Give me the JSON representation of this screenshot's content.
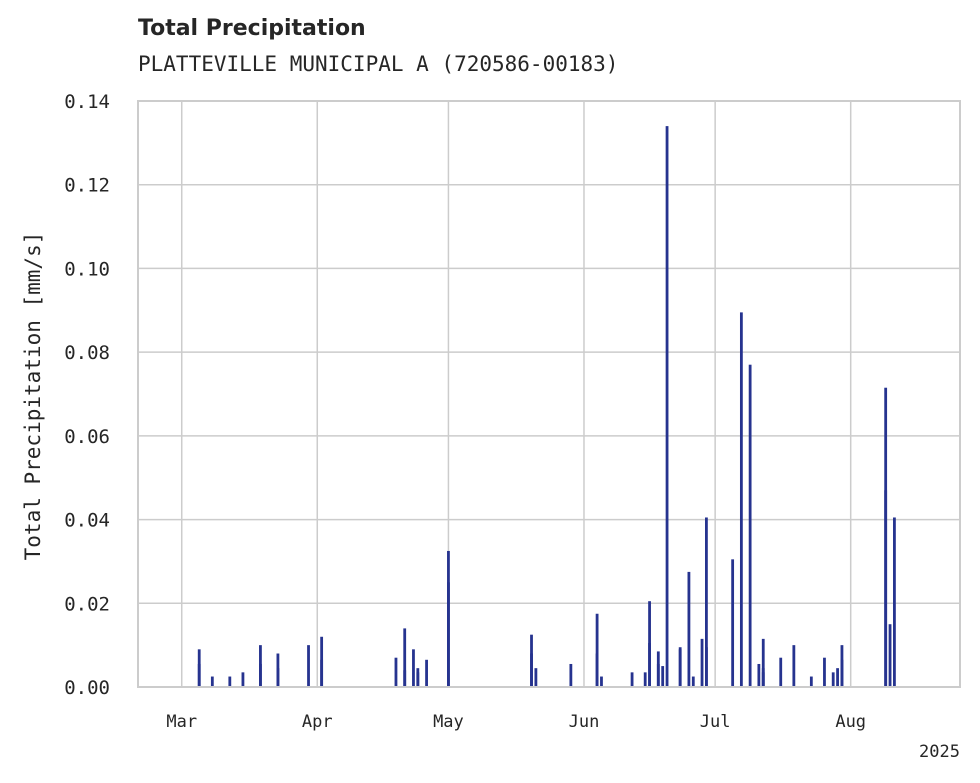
{
  "chart_data": {
    "type": "bar",
    "title": "Total Precipitation",
    "subtitle": "PLATTEVILLE MUNICIPAL A (720586-00183)",
    "xlabel": "",
    "ylabel": "Total Precipitation [mm/s]",
    "x_range": [
      "2025-02-19",
      "2025-08-26"
    ],
    "ylim": [
      0,
      0.14
    ],
    "yticks": [
      0.0,
      0.02,
      0.04,
      0.06,
      0.08,
      0.1,
      0.12,
      0.14
    ],
    "ytick_labels": [
      "0.00",
      "0.02",
      "0.04",
      "0.06",
      "0.08",
      "0.10",
      "0.12",
      "0.14"
    ],
    "xticks": [
      {
        "date": "2025-03-01",
        "label": "Mar"
      },
      {
        "date": "2025-04-01",
        "label": "Apr"
      },
      {
        "date": "2025-05-01",
        "label": "May"
      },
      {
        "date": "2025-06-01",
        "label": "Jun"
      },
      {
        "date": "2025-07-01",
        "label": "Jul"
      },
      {
        "date": "2025-08-01",
        "label": "Aug"
      }
    ],
    "year_label": "2025",
    "grid": true,
    "bar_color": "#26338f",
    "series": [
      {
        "x": [
          "2025-03-05",
          "2025-03-05",
          "2025-03-08",
          "2025-03-12",
          "2025-03-15",
          "2025-03-19",
          "2025-03-19",
          "2025-03-23",
          "2025-03-23",
          "2025-03-30",
          "2025-04-02",
          "2025-04-02",
          "2025-04-19",
          "2025-04-21",
          "2025-04-21",
          "2025-04-23",
          "2025-04-24",
          "2025-04-24",
          "2025-04-26",
          "2025-05-01",
          "2025-05-01",
          "2025-05-20",
          "2025-05-20",
          "2025-05-21",
          "2025-05-29",
          "2025-06-04",
          "2025-06-04",
          "2025-06-05",
          "2025-06-12",
          "2025-06-15",
          "2025-06-16",
          "2025-06-16",
          "2025-06-18",
          "2025-06-18",
          "2025-06-19",
          "2025-06-20",
          "2025-06-23",
          "2025-06-23",
          "2025-06-25",
          "2025-06-26",
          "2025-06-28",
          "2025-06-29",
          "2025-06-29",
          "2025-07-05",
          "2025-07-07",
          "2025-07-09",
          "2025-07-12",
          "2025-07-12",
          "2025-07-11",
          "2025-07-12",
          "2025-07-16",
          "2025-07-19",
          "2025-07-23",
          "2025-07-26",
          "2025-07-28",
          "2025-07-29",
          "2025-07-30",
          "2025-07-30",
          "2025-08-09",
          "2025-08-09",
          "2025-08-10",
          "2025-08-11"
        ],
        "values": [
          0.009,
          0.0055,
          0.0025,
          0.0025,
          0.0035,
          0.01,
          0.0055,
          0.008,
          0.0045,
          0.01,
          0.012,
          0.0065,
          0.007,
          0.014,
          0.004,
          0.009,
          0.0045,
          0.0035,
          0.0065,
          0.0325,
          0.025,
          0.0125,
          0.008,
          0.0045,
          0.0055,
          0.0175,
          0.008,
          0.0025,
          0.0035,
          0.0035,
          0.0205,
          0.0105,
          0.0055,
          0.0085,
          0.005,
          0.134,
          0.009,
          0.0095,
          0.0275,
          0.0025,
          0.0115,
          0.0405,
          0.0095,
          0.0305,
          0.0895,
          0.077,
          0.0115,
          0.0045,
          0.0055,
          0.0035,
          0.007,
          0.01,
          0.0025,
          0.007,
          0.0035,
          0.0045,
          0.01,
          0.0065,
          0.047,
          0.0715,
          0.015,
          0.0405
        ]
      }
    ]
  }
}
